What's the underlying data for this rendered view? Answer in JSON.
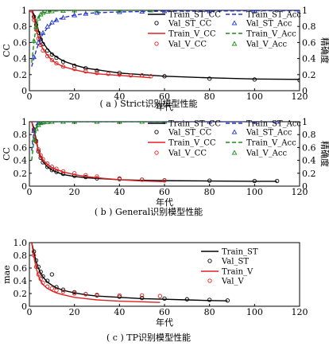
{
  "chart_data": [
    {
      "type": "line",
      "caption": "( a ) Strict识别模型性能",
      "xlabel": "年代",
      "ylabel": "CC",
      "ylabel_right": "精确度",
      "xlim": [
        0,
        120
      ],
      "xticks": [
        0,
        20,
        40,
        60,
        80,
        100,
        120
      ],
      "ylim": [
        0,
        1
      ],
      "yticks": [
        "0",
        "0.2",
        "0.4",
        "0.6",
        "0.8",
        "1"
      ],
      "ylim_right": [
        0,
        1
      ],
      "yticks_right": [
        "0",
        "0.2",
        "0.4",
        "0.6",
        "0.8",
        "1"
      ],
      "legend_position": "top-right, two columns",
      "series": [
        {
          "name": "Train_ST_CC",
          "axis": "left",
          "style": "solid",
          "color": "#000000",
          "x": [
            1,
            2,
            3,
            4,
            5,
            6,
            8,
            10,
            12,
            15,
            20,
            25,
            30,
            40,
            50,
            60,
            80,
            100,
            120
          ],
          "y": [
            1.0,
            0.95,
            0.85,
            0.75,
            0.66,
            0.6,
            0.52,
            0.46,
            0.42,
            0.37,
            0.32,
            0.28,
            0.26,
            0.22,
            0.2,
            0.18,
            0.16,
            0.145,
            0.14
          ]
        },
        {
          "name": "Val_ST_CC",
          "axis": "left",
          "marker": "circle",
          "color": "#000000",
          "x": [
            1,
            2,
            3,
            4,
            5,
            6,
            8,
            10,
            12,
            15,
            20,
            25,
            30,
            40,
            50,
            60,
            80,
            100,
            120
          ],
          "y": [
            1.0,
            0.92,
            0.82,
            0.72,
            0.64,
            0.58,
            0.5,
            0.45,
            0.41,
            0.36,
            0.31,
            0.28,
            0.25,
            0.22,
            0.19,
            0.18,
            0.15,
            0.14,
            0.13
          ]
        },
        {
          "name": "Train_V_CC",
          "axis": "left",
          "style": "solid",
          "color": "#e02020",
          "x": [
            1,
            2,
            3,
            4,
            5,
            6,
            8,
            10,
            12,
            15,
            20,
            25,
            30,
            35,
            40,
            45,
            50,
            54
          ],
          "y": [
            1.0,
            0.9,
            0.78,
            0.66,
            0.58,
            0.52,
            0.44,
            0.38,
            0.34,
            0.3,
            0.26,
            0.23,
            0.21,
            0.2,
            0.19,
            0.18,
            0.17,
            0.16
          ]
        },
        {
          "name": "Val_V_CC",
          "axis": "left",
          "marker": "circle",
          "color": "#e02020",
          "x": [
            1,
            2,
            3,
            4,
            5,
            6,
            8,
            10,
            12,
            15,
            20,
            25,
            30,
            35,
            40,
            45,
            50,
            54
          ],
          "y": [
            1.0,
            0.88,
            0.76,
            0.65,
            0.57,
            0.5,
            0.43,
            0.38,
            0.34,
            0.3,
            0.27,
            0.24,
            0.22,
            0.21,
            0.2,
            0.19,
            0.19,
            0.18
          ]
        },
        {
          "name": "Train_ST_Acc",
          "axis": "right",
          "style": "dashed",
          "color": "#2233cc",
          "x": [
            1,
            2,
            3,
            4,
            5,
            6,
            8,
            10,
            12,
            15,
            20,
            25,
            30,
            40,
            50,
            60,
            80,
            100,
            120
          ],
          "y": [
            0.3,
            0.4,
            0.5,
            0.58,
            0.65,
            0.71,
            0.78,
            0.84,
            0.88,
            0.91,
            0.94,
            0.96,
            0.97,
            0.98,
            0.985,
            0.99,
            0.99,
            0.995,
            0.995
          ]
        },
        {
          "name": "Val_ST_Acc",
          "axis": "right",
          "marker": "triangle",
          "color": "#2233cc",
          "x": [
            2,
            4,
            6,
            8,
            10,
            12,
            15,
            20,
            25,
            30,
            40,
            50,
            60,
            80,
            100,
            120
          ],
          "y": [
            0.42,
            0.6,
            0.72,
            0.8,
            0.85,
            0.88,
            0.91,
            0.94,
            0.96,
            0.97,
            0.98,
            0.985,
            0.99,
            0.99,
            0.995,
            0.995
          ]
        },
        {
          "name": "Train_V_Acc",
          "axis": "right",
          "style": "dashed",
          "color": "#1a8a1a",
          "x": [
            1,
            2,
            3,
            4,
            5,
            6,
            8,
            10,
            15,
            20,
            30,
            40,
            54
          ],
          "y": [
            0.35,
            0.6,
            0.8,
            0.9,
            0.95,
            0.97,
            0.985,
            0.99,
            0.995,
            1.0,
            1.0,
            1.0,
            1.0
          ]
        },
        {
          "name": "Val_V_Acc",
          "axis": "right",
          "marker": "triangle",
          "color": "#1a8a1a",
          "x": [
            2,
            3,
            4,
            5,
            6,
            8,
            10,
            15,
            20,
            30,
            40,
            54
          ],
          "y": [
            0.62,
            0.8,
            0.9,
            0.95,
            0.97,
            0.985,
            0.99,
            0.995,
            1.0,
            1.0,
            1.0,
            1.0
          ]
        }
      ]
    },
    {
      "type": "line",
      "caption": "( b ) General识别模型性能",
      "xlabel": "年代",
      "ylabel": "CC",
      "ylabel_right": "精确度",
      "xlim": [
        0,
        120
      ],
      "xticks": [
        0,
        20,
        40,
        60,
        80,
        100,
        120
      ],
      "ylim": [
        0,
        1
      ],
      "yticks": [
        "0",
        "0.2",
        "0.4",
        "0.6",
        "0.8",
        "1"
      ],
      "ylim_right": [
        0,
        1
      ],
      "yticks_right": [
        "0",
        "0.2",
        "0.4",
        "0.6",
        "0.8",
        "1"
      ],
      "legend_position": "top-right, two columns",
      "series": [
        {
          "name": "Train_ST_CC",
          "axis": "left",
          "style": "solid",
          "color": "#000000",
          "x": [
            1,
            2,
            3,
            4,
            5,
            6,
            8,
            10,
            12,
            15,
            20,
            25,
            30,
            40,
            50,
            60,
            80,
            100,
            110
          ],
          "y": [
            1.0,
            0.9,
            0.72,
            0.55,
            0.45,
            0.38,
            0.3,
            0.25,
            0.22,
            0.18,
            0.15,
            0.13,
            0.12,
            0.1,
            0.09,
            0.085,
            0.08,
            0.075,
            0.075
          ]
        },
        {
          "name": "Val_ST_CC",
          "axis": "left",
          "marker": "circle",
          "color": "#000000",
          "x": [
            2,
            3,
            4,
            5,
            6,
            8,
            10,
            12,
            15,
            20,
            25,
            30,
            40,
            50,
            60,
            80,
            100,
            110
          ],
          "y": [
            0.88,
            0.7,
            0.54,
            0.44,
            0.37,
            0.3,
            0.25,
            0.22,
            0.19,
            0.16,
            0.14,
            0.12,
            0.11,
            0.1,
            0.09,
            0.085,
            0.08,
            0.08
          ]
        },
        {
          "name": "Train_V_CC",
          "axis": "left",
          "style": "solid",
          "color": "#e02020",
          "x": [
            1,
            2,
            3,
            4,
            5,
            6,
            8,
            10,
            12,
            15,
            20,
            25,
            30,
            40,
            50,
            60
          ],
          "y": [
            1.0,
            0.85,
            0.68,
            0.56,
            0.47,
            0.41,
            0.34,
            0.29,
            0.26,
            0.22,
            0.18,
            0.15,
            0.13,
            0.1,
            0.08,
            0.07
          ]
        },
        {
          "name": "Val_V_CC",
          "axis": "left",
          "marker": "circle",
          "color": "#e02020",
          "x": [
            2,
            3,
            4,
            5,
            6,
            8,
            10,
            12,
            15,
            20,
            25,
            30,
            40,
            50,
            60
          ],
          "y": [
            0.86,
            0.69,
            0.57,
            0.48,
            0.42,
            0.35,
            0.3,
            0.27,
            0.23,
            0.2,
            0.17,
            0.15,
            0.12,
            0.1,
            0.09
          ]
        },
        {
          "name": "Train_ST_Acc",
          "axis": "right",
          "style": "dashed",
          "color": "#2233cc",
          "x": [
            1,
            2,
            3,
            4,
            5,
            6,
            8,
            10,
            15,
            20,
            30,
            40,
            60,
            80,
            100,
            110
          ],
          "y": [
            0.55,
            0.85,
            0.95,
            0.98,
            0.99,
            0.995,
            1.0,
            1.0,
            1.0,
            1.0,
            1.0,
            1.0,
            1.0,
            1.0,
            1.0,
            1.0
          ]
        },
        {
          "name": "Val_ST_Acc",
          "axis": "right",
          "marker": "triangle",
          "color": "#2233cc",
          "x": [
            2,
            4,
            6,
            10,
            15,
            20,
            30,
            40,
            60,
            80,
            100,
            110
          ],
          "y": [
            0.86,
            0.98,
            0.995,
            1.0,
            1.0,
            1.0,
            1.0,
            1.0,
            1.0,
            1.0,
            1.0,
            1.0
          ]
        },
        {
          "name": "Train_V_Acc",
          "axis": "right",
          "style": "dashed",
          "color": "#1a8a1a",
          "x": [
            1,
            2,
            3,
            4,
            5,
            6,
            8,
            10,
            15,
            20,
            30,
            40,
            50,
            60
          ],
          "y": [
            0.4,
            0.7,
            0.88,
            0.95,
            0.98,
            0.99,
            0.995,
            1.0,
            1.0,
            1.0,
            1.0,
            1.0,
            1.0,
            1.0
          ]
        },
        {
          "name": "Val_V_Acc",
          "axis": "right",
          "marker": "triangle",
          "color": "#1a8a1a",
          "x": [
            2,
            3,
            4,
            5,
            6,
            8,
            10,
            15,
            20,
            30,
            40,
            50,
            60
          ],
          "y": [
            0.72,
            0.89,
            0.95,
            0.98,
            0.99,
            0.995,
            1.0,
            1.0,
            1.0,
            1.0,
            1.0,
            1.0,
            1.0
          ]
        }
      ]
    },
    {
      "type": "line",
      "caption": "( c ) TP识别模型性能",
      "xlabel": "年代",
      "ylabel": "mae",
      "xlim": [
        0,
        120
      ],
      "xticks": [
        0,
        20,
        40,
        60,
        80,
        100,
        120
      ],
      "ylim": [
        0,
        1
      ],
      "yticks": [
        "0",
        "0.2",
        "0.4",
        "0.6",
        "0.8",
        "1.0"
      ],
      "legend_position": "top-right",
      "series": [
        {
          "name": "Train_ST",
          "style": "solid",
          "color": "#000000",
          "x": [
            1,
            2,
            3,
            4,
            5,
            6,
            8,
            10,
            12,
            15,
            20,
            25,
            30,
            40,
            50,
            60,
            70,
            80,
            88
          ],
          "y": [
            1.0,
            0.85,
            0.7,
            0.6,
            0.52,
            0.46,
            0.38,
            0.33,
            0.29,
            0.25,
            0.21,
            0.18,
            0.16,
            0.14,
            0.12,
            0.11,
            0.1,
            0.09,
            0.085
          ]
        },
        {
          "name": "Val_ST",
          "marker": "circle",
          "color": "#000000",
          "x": [
            2,
            3,
            4,
            5,
            6,
            8,
            10,
            12,
            15,
            20,
            25,
            30,
            40,
            50,
            60,
            70,
            80,
            88
          ],
          "y": [
            0.86,
            0.72,
            0.62,
            0.54,
            0.47,
            0.4,
            0.5,
            0.3,
            0.26,
            0.22,
            0.19,
            0.17,
            0.15,
            0.13,
            0.12,
            0.11,
            0.1,
            0.09
          ]
        },
        {
          "name": "Train_V",
          "style": "solid",
          "color": "#e02020",
          "x": [
            1,
            2,
            3,
            4,
            5,
            6,
            8,
            10,
            12,
            15,
            20,
            25,
            30,
            40,
            50,
            58
          ],
          "y": [
            1.0,
            0.78,
            0.6,
            0.48,
            0.4,
            0.34,
            0.28,
            0.24,
            0.21,
            0.18,
            0.14,
            0.12,
            0.1,
            0.08,
            0.07,
            0.06
          ]
        },
        {
          "name": "Val_V",
          "marker": "circle",
          "color": "#e02020",
          "x": [
            2,
            3,
            4,
            5,
            6,
            8,
            10,
            12,
            15,
            20,
            25,
            30,
            40,
            50,
            58
          ],
          "y": [
            0.8,
            0.62,
            0.5,
            0.43,
            0.37,
            0.31,
            0.28,
            0.25,
            0.23,
            0.2,
            0.19,
            0.18,
            0.17,
            0.17,
            0.16
          ]
        }
      ]
    }
  ]
}
